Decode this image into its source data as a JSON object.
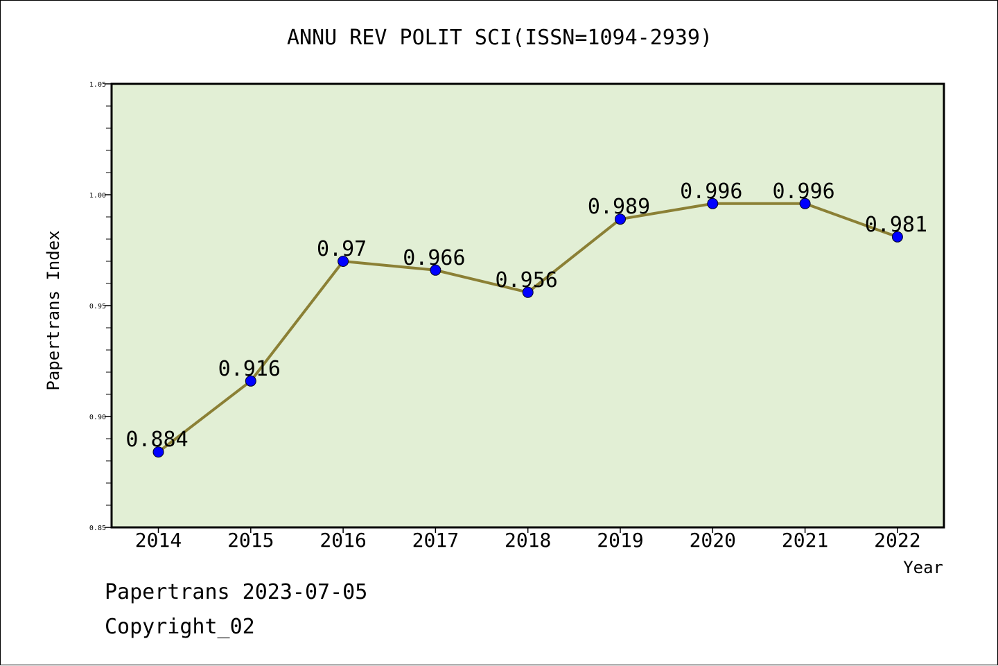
{
  "chart_data": {
    "type": "line",
    "title": "ANNU REV POLIT SCI(ISSN=1094-2939)",
    "xlabel": "Year",
    "ylabel": "Papertrans Index",
    "categories": [
      "2014",
      "2015",
      "2016",
      "2017",
      "2018",
      "2019",
      "2020",
      "2021",
      "2022"
    ],
    "values": [
      0.884,
      0.916,
      0.97,
      0.966,
      0.956,
      0.989,
      0.996,
      0.996,
      0.981
    ],
    "data_labels": [
      "0.884",
      "0.916",
      "0.97",
      "0.966",
      "0.956",
      "0.989",
      "0.996",
      "0.996",
      "0.981"
    ],
    "ylim": [
      0.85,
      1.05
    ],
    "yticks": [
      0.85,
      0.9,
      0.95,
      1.0,
      1.05
    ],
    "ytick_labels": [
      "0.85",
      "0.90",
      "0.95",
      "1.00",
      "1.05"
    ],
    "grid": false,
    "legend": "none",
    "colors": {
      "plot_background": "#e2efd5",
      "line": "#8b8035",
      "marker": "#0000ff"
    }
  },
  "footer": {
    "date_line": "Papertrans 2023-07-05",
    "copyright": "Copyright_02"
  }
}
